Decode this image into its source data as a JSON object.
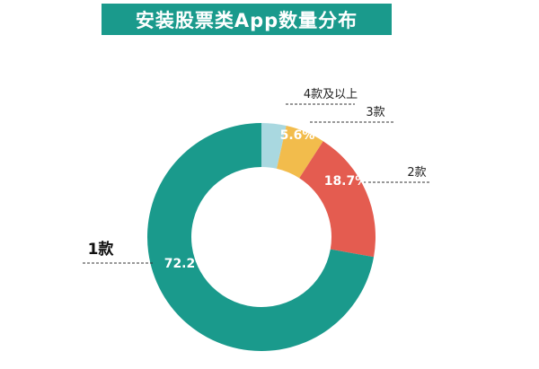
{
  "chart_data": {
    "type": "pie",
    "variant": "donut",
    "title": "安装股票类App数量分布",
    "categories": [
      "1款",
      "2款",
      "3款",
      "4款及以上"
    ],
    "values": [
      72.2,
      18.7,
      5.6,
      3.5
    ],
    "value_labels": [
      "72.2%",
      "18.7%",
      "5.6%",
      "3.5%"
    ],
    "colors": [
      "#1a9a8c",
      "#e45c50",
      "#f2bc4c",
      "#a9d8e0"
    ],
    "legend": "leader-line labels"
  }
}
